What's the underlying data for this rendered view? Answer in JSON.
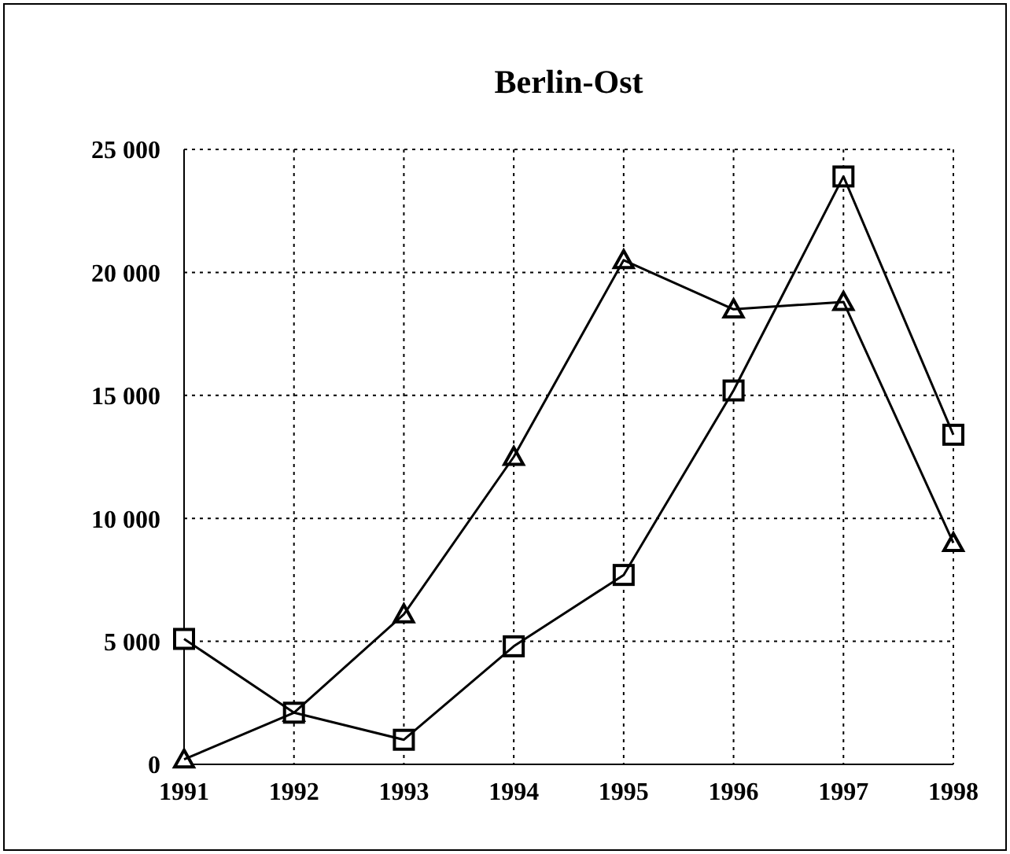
{
  "chart_data": {
    "type": "line",
    "title": "Berlin-Ost",
    "x": [
      1991,
      1992,
      1993,
      1994,
      1995,
      1996,
      1997,
      1998
    ],
    "xlim": [
      1991,
      1998
    ],
    "xticks": [
      1991,
      1992,
      1993,
      1994,
      1995,
      1996,
      1997,
      1998
    ],
    "ylim": [
      0,
      25000
    ],
    "yticks": [
      0,
      {
        "value": 5000,
        "label": "5 000"
      },
      {
        "value": 10000,
        "label": "10 000"
      },
      {
        "value": 15000,
        "label": "15 000"
      },
      {
        "value": 20000,
        "label": "20 000"
      },
      {
        "value": 25000,
        "label": "25 000"
      }
    ],
    "series": [
      {
        "color": "#000000",
        "marker": "triangle",
        "values": [
          200,
          2100,
          6100,
          12500,
          20500,
          18500,
          18800,
          9000
        ]
      },
      {
        "color": "#000000",
        "marker": "square",
        "values": [
          5100,
          2100,
          1000,
          4800,
          7700,
          15200,
          23900,
          13400
        ]
      }
    ],
    "grid": true,
    "line_style": "solid"
  }
}
